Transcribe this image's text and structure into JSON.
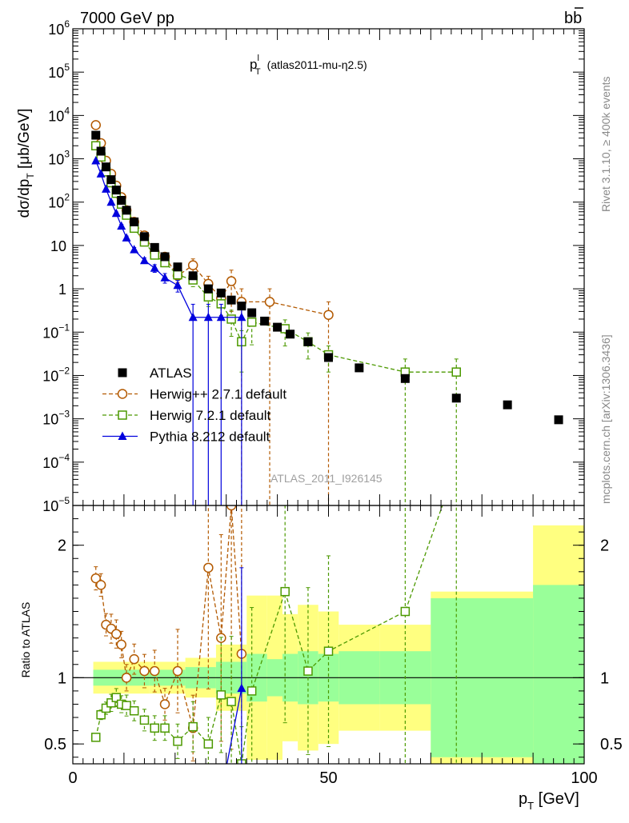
{
  "header": {
    "left_title": "7000 GeV pp",
    "right_title": "b",
    "right_title_bar": "b"
  },
  "side_labels": {
    "rivet": "Rivet 3.1.10, ≥ 400k events",
    "mcplots": "mcplots.cern.ch [arXiv:1306.3436]"
  },
  "chart_data": {
    "type": "scatter",
    "title_main": "p",
    "title_sup": "l",
    "title_sub": "T",
    "title_extra": "(atlas2011-mu-η2.5)",
    "watermark": "ATLAS_2011_I926145",
    "ylabel": "dσ/dp_T [μb/GeV]",
    "ylabel_ratio": "Ratio to ATLAS",
    "xlabel": "p_T [GeV]",
    "xlim": [
      0,
      100
    ],
    "ylim": [
      1e-05,
      1000000.0
    ],
    "ylim_ratio": [
      0.35,
      2.3
    ],
    "x_ticks": [
      {
        "v": 0,
        "label": "0"
      },
      {
        "v": 50,
        "label": "50"
      },
      {
        "v": 100,
        "label": "100"
      }
    ],
    "y_ticks": [
      {
        "v": 1000000.0,
        "label": "10",
        "exp": "6"
      },
      {
        "v": 100000.0,
        "label": "10",
        "exp": "5"
      },
      {
        "v": 10000.0,
        "label": "10",
        "exp": "4"
      },
      {
        "v": 1000.0,
        "label": "10",
        "exp": "3"
      },
      {
        "v": 100.0,
        "label": "10",
        "exp": "2"
      },
      {
        "v": 10,
        "label": "10",
        "exp": ""
      },
      {
        "v": 1,
        "label": "1",
        "exp": ""
      },
      {
        "v": 0.1,
        "label": "10",
        "exp": "−1"
      },
      {
        "v": 0.01,
        "label": "10",
        "exp": "−2"
      },
      {
        "v": 0.001,
        "label": "10",
        "exp": "−3"
      },
      {
        "v": 0.0001,
        "label": "10",
        "exp": "−4"
      },
      {
        "v": 1e-05,
        "label": "10",
        "exp": "−5"
      }
    ],
    "ratio_ticks": [
      {
        "v": 2,
        "label": "2"
      },
      {
        "v": 1,
        "label": "1"
      },
      {
        "v": 0.5,
        "label": "0.5"
      }
    ],
    "legend": [
      {
        "name": "ATLAS",
        "color": "#000000",
        "marker": "square-filled"
      },
      {
        "name": "Herwig++ 2.7.1 default",
        "color": "#b35900",
        "marker": "circle-open"
      },
      {
        "name": "Herwig 7.2.1 default",
        "color": "#4c9900",
        "marker": "square-open"
      },
      {
        "name": "Pythia 8.212 default",
        "color": "#0000dd",
        "marker": "triangle-filled"
      }
    ],
    "series": [
      {
        "name": "ATLAS",
        "color": "#000000",
        "x": [
          4.5,
          5.5,
          6.5,
          7.5,
          8.5,
          9.5,
          10.5,
          12,
          14,
          16,
          18,
          20.5,
          23.5,
          26.5,
          29,
          31,
          33,
          35,
          37.5,
          40,
          42.5,
          46,
          50,
          56,
          65,
          75,
          85,
          95
        ],
        "y": [
          3500,
          1500,
          650,
          330,
          190,
          110,
          65,
          35,
          16,
          9,
          5.5,
          3.2,
          2.0,
          1.0,
          0.8,
          0.55,
          0.4,
          0.28,
          0.18,
          0.13,
          0.09,
          0.06,
          0.026,
          0.015,
          0.0085,
          0.003,
          0.0021,
          0.00095
        ],
        "bands": [
          {
            "x0": 4,
            "x1": 15,
            "inner": 0.06,
            "outer": 0.12
          },
          {
            "x0": 15,
            "x1": 22,
            "inner": 0.06,
            "outer": 0.12
          },
          {
            "x0": 22,
            "x1": 28,
            "inner": 0.08,
            "outer": 0.15
          },
          {
            "x0": 28,
            "x1": 34,
            "inner": 0.12,
            "outer": 0.25
          },
          {
            "x0": 34,
            "x1": 38,
            "inner": 0.18,
            "outer": 0.62
          },
          {
            "x0": 38,
            "x1": 41,
            "inner": 0.14,
            "outer": 0.62
          },
          {
            "x0": 41,
            "x1": 44,
            "inner": 0.18,
            "outer": 0.48
          },
          {
            "x0": 44,
            "x1": 48,
            "inner": 0.2,
            "outer": 0.55
          },
          {
            "x0": 48,
            "x1": 52,
            "inner": 0.18,
            "outer": 0.5
          },
          {
            "x0": 52,
            "x1": 60,
            "inner": 0.2,
            "outer": 0.4
          },
          {
            "x0": 60,
            "x1": 70,
            "inner": 0.2,
            "outer": 0.4
          },
          {
            "x0": 70,
            "x1": 90,
            "inner": 0.6,
            "outer": 0.65
          },
          {
            "x0": 90,
            "x1": 100,
            "inner": 0.7,
            "outer": 1.15
          }
        ]
      },
      {
        "name": "Herwig++ 2.7.1 default",
        "color": "#b35900",
        "x": [
          4.5,
          5.5,
          6.5,
          7.5,
          8.5,
          9.5,
          10.5,
          12,
          14,
          16,
          18,
          20.5,
          23.5,
          26.5,
          29,
          31,
          33,
          38.5,
          50
        ],
        "y": [
          6000,
          2300,
          900,
          450,
          240,
          130,
          65,
          35,
          17,
          7,
          5.5,
          2.0,
          3.5,
          1.3,
          0.6,
          1.5,
          0.5,
          0.5,
          0.25
        ],
        "err": [
          0.05,
          0.05,
          0.06,
          0.08,
          0.08,
          0.08,
          0.1,
          0.1,
          0.12,
          0.15,
          0.15,
          0.3,
          0.4,
          0.5,
          0.6,
          0.8,
          1.0,
          1.0,
          1.0
        ]
      },
      {
        "name": "Herwig 7.2.1 default",
        "color": "#4c9900",
        "x": [
          4.5,
          5.5,
          6.5,
          7.5,
          8.5,
          9.5,
          10.5,
          12,
          14,
          16,
          18,
          20.5,
          23.5,
          26.5,
          29,
          31,
          33,
          35,
          41.5,
          46,
          50,
          65,
          75
        ],
        "y": [
          2000,
          1100,
          500,
          280,
          160,
          90,
          50,
          25,
          12,
          6,
          4,
          2.1,
          1.6,
          0.65,
          0.45,
          0.2,
          0.06,
          0.17,
          0.12,
          0.06,
          0.03,
          0.012,
          0.012
        ],
        "err": [
          0.05,
          0.05,
          0.06,
          0.08,
          0.08,
          0.08,
          0.1,
          0.1,
          0.12,
          0.15,
          0.15,
          0.25,
          0.3,
          0.4,
          0.5,
          0.6,
          0.8,
          0.7,
          0.6,
          0.6,
          0.6,
          1.0,
          1.0
        ],
        "ratio": [
          0.55,
          0.72,
          0.77,
          0.81,
          0.85,
          0.8,
          0.79,
          0.75,
          0.68,
          0.62,
          0.62,
          0.52,
          0.63,
          0.5,
          0.87,
          0.82,
          0.35,
          0.9,
          1.65,
          1.05,
          1.2,
          1.5,
          2.6
        ]
      },
      {
        "name": "Pythia 8.212 default",
        "color": "#0000dd",
        "x": [
          4.5,
          5.5,
          6.5,
          7.5,
          8.5,
          9.5,
          10.5,
          12,
          14,
          16,
          18,
          20.5,
          23.5,
          26.5,
          29,
          33
        ],
        "y": [
          900,
          450,
          200,
          100,
          55,
          28,
          15,
          8,
          4.5,
          3.0,
          1.8,
          1.2,
          0.22,
          0.22,
          0.22,
          0.22
        ],
        "err": [
          0.05,
          0.05,
          0.06,
          0.08,
          0.08,
          0.1,
          0.1,
          0.12,
          0.15,
          0.2,
          0.25,
          0.3,
          1.0,
          1.0,
          1.0,
          1.0
        ],
        "ratio_point": {
          "x": 33,
          "y": 0.92
        }
      }
    ],
    "herwigpp_ratio": [
      1.75,
      1.7,
      1.4,
      1.37,
      1.33,
      1.25,
      1.0,
      1.14,
      1.05,
      1.05,
      0.8,
      1.05,
      0.62,
      1.83,
      1.3,
      2.3,
      1.18
    ]
  }
}
